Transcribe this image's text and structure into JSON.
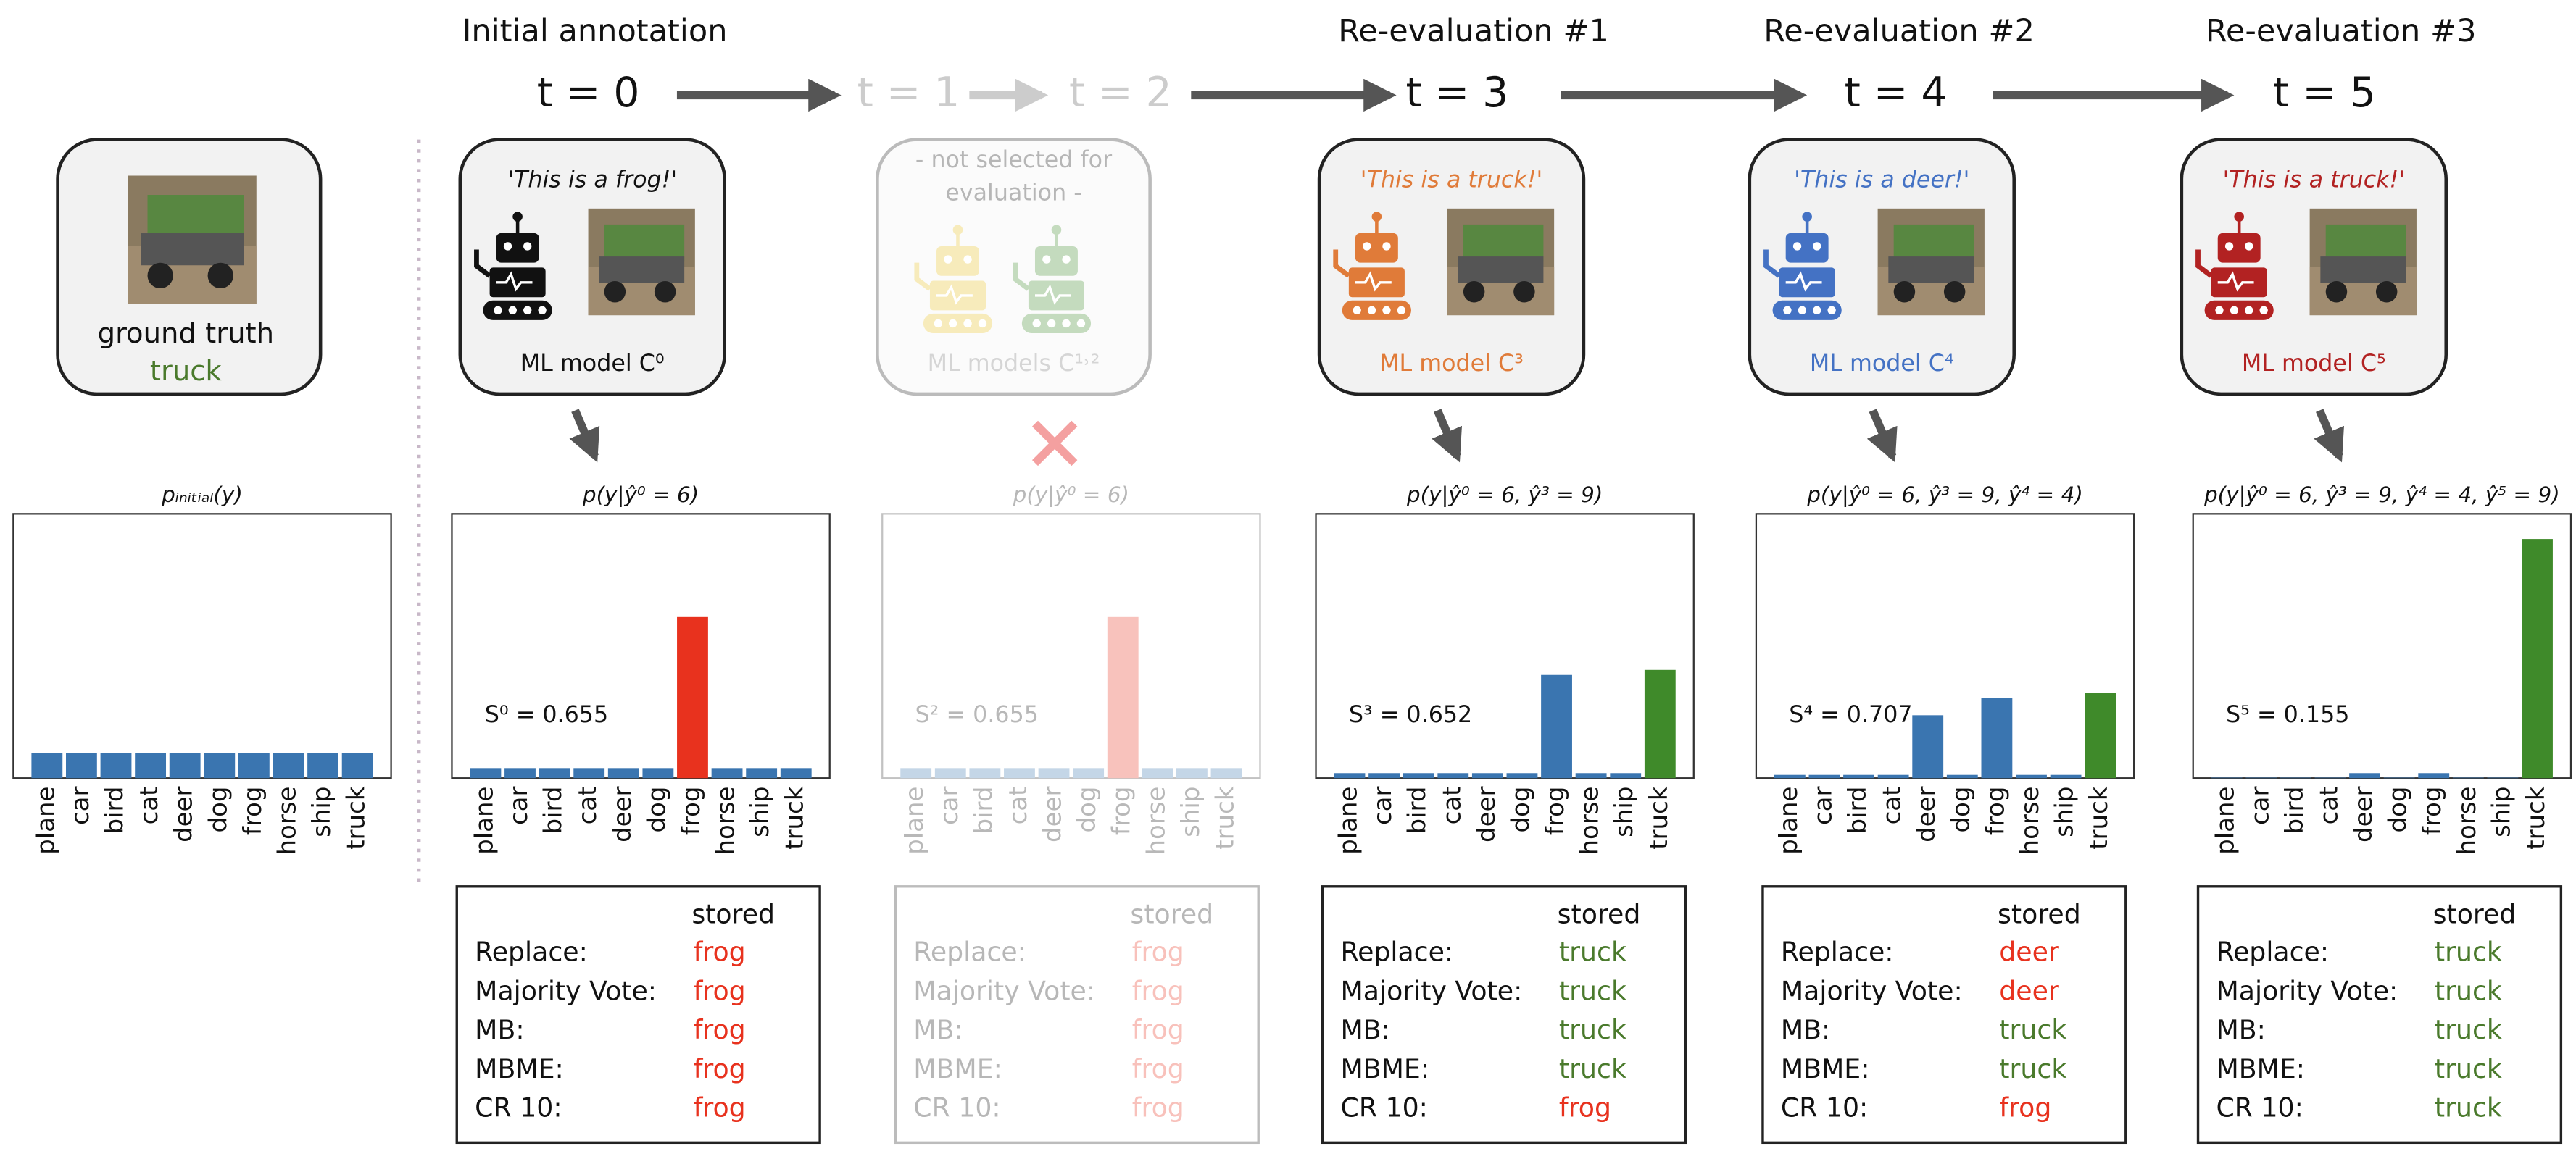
{
  "titles": [
    "Initial annotation",
    "Re-evaluation #1",
    "Re-evaluation #2",
    "Re-evaluation #3"
  ],
  "times": [
    "t = 0",
    "t = 1",
    "t = 2",
    "t = 3",
    "t = 4",
    "t = 5"
  ],
  "ground_truth": {
    "label": "ground truth",
    "value": "truck",
    "color": "#4a7a2c"
  },
  "panels": [
    {
      "quote": "'This is a frog!'",
      "model": "ML model C⁰",
      "color": "#111111"
    },
    {
      "quote": "- not selected for evaluation -",
      "model": "ML models C¹˒²",
      "color": "#777777"
    },
    {
      "quote": "'This is a truck!'",
      "model": "ML model C³",
      "color": "#e07b39"
    },
    {
      "quote": "'This is a deer!'",
      "model": "ML model C⁴",
      "color": "#4472c4"
    },
    {
      "quote": "'This is a truck!'",
      "model": "ML model C⁵",
      "color": "#b22222"
    }
  ],
  "chart_data": [
    {
      "type": "bar",
      "title": "pᵢₙᵢₜᵢₐₗ(y)",
      "categories": [
        "plane",
        "car",
        "bird",
        "cat",
        "deer",
        "dog",
        "frog",
        "horse",
        "ship",
        "truck"
      ],
      "values": [
        0.1,
        0.1,
        0.1,
        0.1,
        0.1,
        0.1,
        0.1,
        0.1,
        0.1,
        0.1
      ],
      "colors": [
        "#3a75b0",
        "#3a75b0",
        "#3a75b0",
        "#3a75b0",
        "#3a75b0",
        "#3a75b0",
        "#3a75b0",
        "#3a75b0",
        "#3a75b0",
        "#3a75b0"
      ],
      "ylim": [
        0,
        1.05
      ]
    },
    {
      "type": "bar",
      "title": "p(y|ŷ⁰ = 6)",
      "annotation": "S⁰ = 0.655",
      "categories": [
        "plane",
        "car",
        "bird",
        "cat",
        "deer",
        "dog",
        "frog",
        "horse",
        "ship",
        "truck"
      ],
      "values": [
        0.04,
        0.04,
        0.04,
        0.04,
        0.04,
        0.04,
        0.64,
        0.04,
        0.04,
        0.04
      ],
      "colors": [
        "#3a75b0",
        "#3a75b0",
        "#3a75b0",
        "#3a75b0",
        "#3a75b0",
        "#3a75b0",
        "#e8321e",
        "#3a75b0",
        "#3a75b0",
        "#3a75b0"
      ],
      "ylim": [
        0,
        1.05
      ]
    },
    {
      "type": "bar",
      "title": "p(y|ŷ⁰ = 6)",
      "annotation": "S² = 0.655",
      "categories": [
        "plane",
        "car",
        "bird",
        "cat",
        "deer",
        "dog",
        "frog",
        "horse",
        "ship",
        "truck"
      ],
      "values": [
        0.04,
        0.04,
        0.04,
        0.04,
        0.04,
        0.04,
        0.64,
        0.04,
        0.04,
        0.04
      ],
      "colors": [
        "#3a75b0",
        "#3a75b0",
        "#3a75b0",
        "#3a75b0",
        "#3a75b0",
        "#3a75b0",
        "#e8321e",
        "#3a75b0",
        "#3a75b0",
        "#3a75b0"
      ],
      "ylim": [
        0,
        1.05
      ]
    },
    {
      "type": "bar",
      "title": "p(y|ŷ⁰ = 6, ŷ³ = 9)",
      "annotation": "S³ = 0.652",
      "categories": [
        "plane",
        "car",
        "bird",
        "cat",
        "deer",
        "dog",
        "frog",
        "horse",
        "ship",
        "truck"
      ],
      "values": [
        0.02,
        0.02,
        0.02,
        0.02,
        0.02,
        0.02,
        0.41,
        0.02,
        0.02,
        0.43
      ],
      "colors": [
        "#3a75b0",
        "#3a75b0",
        "#3a75b0",
        "#3a75b0",
        "#3a75b0",
        "#3a75b0",
        "#3a75b0",
        "#3a75b0",
        "#3a75b0",
        "#3f8a2a"
      ],
      "ylim": [
        0,
        1.05
      ]
    },
    {
      "type": "bar",
      "title": "p(y|ŷ⁰ = 6, ŷ³ = 9, ŷ⁴ = 4)",
      "annotation": "S⁴ = 0.707",
      "categories": [
        "plane",
        "car",
        "bird",
        "cat",
        "deer",
        "dog",
        "frog",
        "horse",
        "ship",
        "truck"
      ],
      "values": [
        0.013,
        0.013,
        0.013,
        0.013,
        0.25,
        0.013,
        0.32,
        0.013,
        0.013,
        0.34
      ],
      "colors": [
        "#3a75b0",
        "#3a75b0",
        "#3a75b0",
        "#3a75b0",
        "#3a75b0",
        "#3a75b0",
        "#3a75b0",
        "#3a75b0",
        "#3a75b0",
        "#3f8a2a"
      ],
      "ylim": [
        0,
        1.05
      ]
    },
    {
      "type": "bar",
      "title": "p(y|ŷ⁰ = 6, ŷ³ = 9, ŷ⁴ = 4, ŷ⁵ = 9)",
      "annotation": "S⁵ = 0.155",
      "categories": [
        "plane",
        "car",
        "bird",
        "cat",
        "deer",
        "dog",
        "frog",
        "horse",
        "ship",
        "truck"
      ],
      "values": [
        0.002,
        0.002,
        0.002,
        0.002,
        0.02,
        0.002,
        0.02,
        0.002,
        0.002,
        0.95
      ],
      "colors": [
        "#3a75b0",
        "#3a75b0",
        "#3a75b0",
        "#3a75b0",
        "#3a75b0",
        "#3a75b0",
        "#3a75b0",
        "#3a75b0",
        "#3a75b0",
        "#3f8a2a"
      ],
      "ylim": [
        0,
        1.05
      ]
    }
  ],
  "tables": [
    {
      "header": "stored",
      "rows": [
        [
          "Replace:",
          "frog"
        ],
        [
          "Majority Vote:",
          "frog"
        ],
        [
          "MB:",
          "frog"
        ],
        [
          "MBME:",
          "frog"
        ],
        [
          "CR 10:",
          "frog"
        ]
      ],
      "colors": [
        "#e8321e",
        "#e8321e",
        "#e8321e",
        "#e8321e",
        "#e8321e"
      ]
    },
    {
      "header": "stored",
      "rows": [
        [
          "Replace:",
          "frog"
        ],
        [
          "Majority Vote:",
          "frog"
        ],
        [
          "MB:",
          "frog"
        ],
        [
          "MBME:",
          "frog"
        ],
        [
          "CR 10:",
          "frog"
        ]
      ],
      "colors": [
        "#e8321e",
        "#e8321e",
        "#e8321e",
        "#e8321e",
        "#e8321e"
      ]
    },
    {
      "header": "stored",
      "rows": [
        [
          "Replace:",
          "truck"
        ],
        [
          "Majority Vote:",
          "truck"
        ],
        [
          "MB:",
          "truck"
        ],
        [
          "MBME:",
          "truck"
        ],
        [
          "CR 10:",
          "frog"
        ]
      ],
      "colors": [
        "#4a7a2c",
        "#4a7a2c",
        "#4a7a2c",
        "#4a7a2c",
        "#e8321e"
      ]
    },
    {
      "header": "stored",
      "rows": [
        [
          "Replace:",
          "deer"
        ],
        [
          "Majority Vote:",
          "deer"
        ],
        [
          "MB:",
          "truck"
        ],
        [
          "MBME:",
          "truck"
        ],
        [
          "CR 10:",
          "frog"
        ]
      ],
      "colors": [
        "#e8321e",
        "#e8321e",
        "#4a7a2c",
        "#4a7a2c",
        "#e8321e"
      ]
    },
    {
      "header": "stored",
      "rows": [
        [
          "Replace:",
          "truck"
        ],
        [
          "Majority Vote:",
          "truck"
        ],
        [
          "MB:",
          "truck"
        ],
        [
          "MBME:",
          "truck"
        ],
        [
          "CR 10:",
          "truck"
        ]
      ],
      "colors": [
        "#4a7a2c",
        "#4a7a2c",
        "#4a7a2c",
        "#4a7a2c",
        "#4a7a2c"
      ]
    }
  ]
}
